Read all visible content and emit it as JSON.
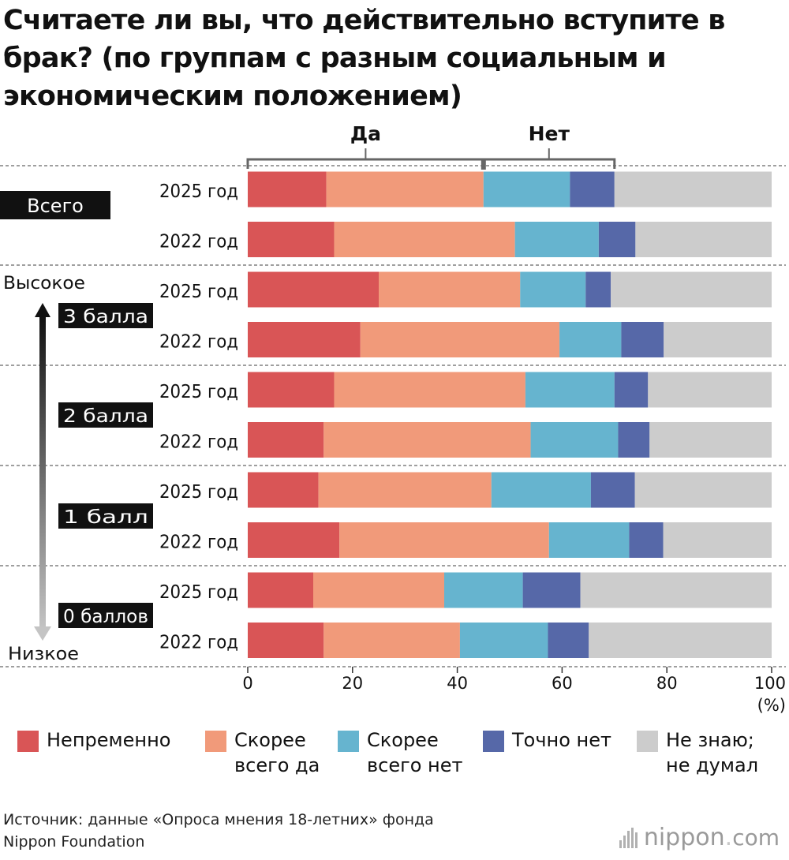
{
  "title": "Считаете ли вы, что действительно вступите в брак? (по группам с разным социальным и экономическим положением)",
  "chart_data": {
    "type": "bar",
    "orientation": "horizontal",
    "stacked": true,
    "groups": [
      "Всего",
      "3 балла",
      "2 балла",
      "1 балл",
      "0 баллов"
    ],
    "rows": [
      {
        "group": "Всего",
        "label": "2025 год",
        "values": [
          15.0,
          30.0,
          16.5,
          8.5,
          30.0
        ]
      },
      {
        "group": "Всего",
        "label": "2022 год",
        "values": [
          16.5,
          34.5,
          16.0,
          7.0,
          26.0
        ]
      },
      {
        "group": "3 балла",
        "label": "2025 год",
        "values": [
          25.0,
          27.0,
          12.5,
          4.8,
          30.7
        ]
      },
      {
        "group": "3 балла",
        "label": "2022 год",
        "values": [
          21.5,
          38.0,
          11.8,
          8.1,
          20.6
        ]
      },
      {
        "group": "2 балла",
        "label": "2025 год",
        "values": [
          16.5,
          36.5,
          17.0,
          6.4,
          23.6
        ]
      },
      {
        "group": "2 балла",
        "label": "2022 год",
        "values": [
          14.5,
          39.5,
          16.7,
          6.0,
          23.3
        ]
      },
      {
        "group": "1 балл",
        "label": "2025 год",
        "values": [
          13.5,
          33.0,
          19.0,
          8.4,
          26.1
        ]
      },
      {
        "group": "1 балл",
        "label": "2022 год",
        "values": [
          17.5,
          40.0,
          15.3,
          6.5,
          20.7
        ]
      },
      {
        "group": "0 баллов",
        "label": "2025 год",
        "values": [
          12.5,
          25.0,
          15.0,
          11.0,
          36.5
        ]
      },
      {
        "group": "0 баллов",
        "label": "2022 год",
        "values": [
          14.5,
          26.0,
          16.8,
          7.8,
          34.9
        ]
      }
    ],
    "series": [
      {
        "name": "Непременно",
        "color": "#d95556"
      },
      {
        "name": "Скорее всего да",
        "color": "#f19a7a"
      },
      {
        "name": "Скорее всего нет",
        "color": "#66b4cf"
      },
      {
        "name": "Точно нет",
        "color": "#5668a8"
      },
      {
        "name": "Не знаю; не думал",
        "color": "#cccccc"
      }
    ],
    "xlim": [
      0,
      100
    ],
    "xticks": [
      "0",
      "20",
      "40",
      "60",
      "80",
      "100"
    ],
    "xunit": "(%)",
    "bracket_yes": "Да",
    "bracket_no": "Нет",
    "axis_high": "Высокое",
    "axis_low": "Низкое"
  },
  "legend": [
    {
      "line1": "Непременно",
      "line2": ""
    },
    {
      "line1": "Скорее",
      "line2": "всего да"
    },
    {
      "line1": "Скорее",
      "line2": "всего нет"
    },
    {
      "line1": "Точно нет",
      "line2": ""
    },
    {
      "line1": "Не знаю;",
      "line2": "не думал"
    }
  ],
  "source": {
    "line1": "Источник: данные «Опроса мнения 18-летних» фонда",
    "line2": "Nippon Foundation"
  },
  "brand": {
    "name": "nippon",
    "dot": ".",
    "tld": "com"
  }
}
